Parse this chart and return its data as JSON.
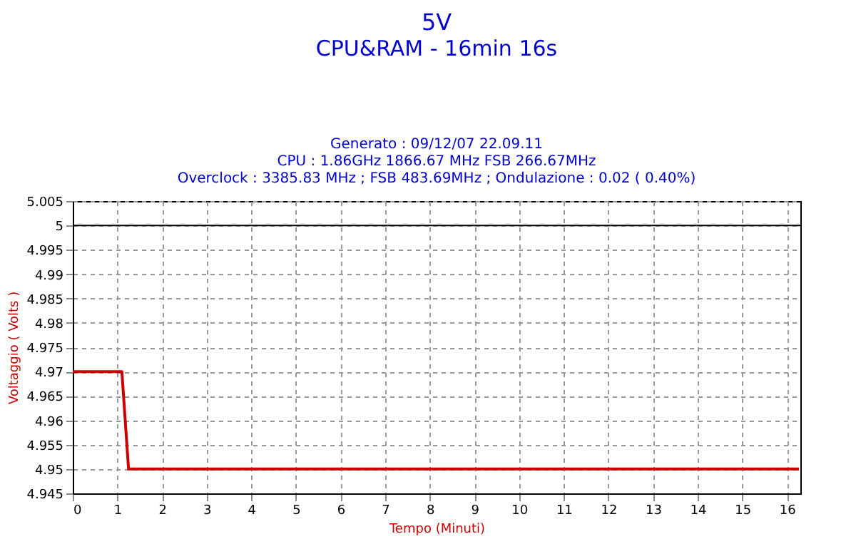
{
  "chart_data": {
    "type": "line",
    "title": "5V",
    "subtitle": "CPU&RAM - 16min 16s",
    "annotations": [
      "Generato : 09/12/07 22.09.11",
      "CPU : 1.86GHz 1866.67 MHz FSB 266.67MHz",
      "Overclock : 3385.83 MHz ; FSB 483.69MHz ; Ondulazione : 0.02 ( 0.40%)"
    ],
    "xlabel": "Tempo (Minuti)",
    "ylabel": "Voltaggio ( Volts )",
    "x": [
      0,
      1.1,
      1.25,
      16.27
    ],
    "series": [
      {
        "color": "#cc0000",
        "values": [
          4.97,
          4.97,
          4.95,
          4.95
        ]
      }
    ],
    "xlim": [
      0,
      16.3
    ],
    "xticks": [
      0,
      1,
      2,
      3,
      4,
      5,
      6,
      7,
      8,
      9,
      10,
      11,
      12,
      13,
      14,
      15,
      16
    ],
    "ylim": [
      4.945,
      5.005
    ],
    "yticks": [
      4.945,
      4.95,
      4.955,
      4.96,
      4.965,
      4.97,
      4.975,
      4.98,
      4.985,
      4.99,
      4.995,
      5,
      5.005
    ],
    "ref_lines": [
      {
        "axis": "y",
        "value": 5,
        "color": "#000000"
      }
    ],
    "grid": true,
    "marker": "none",
    "line_style": "solid"
  }
}
